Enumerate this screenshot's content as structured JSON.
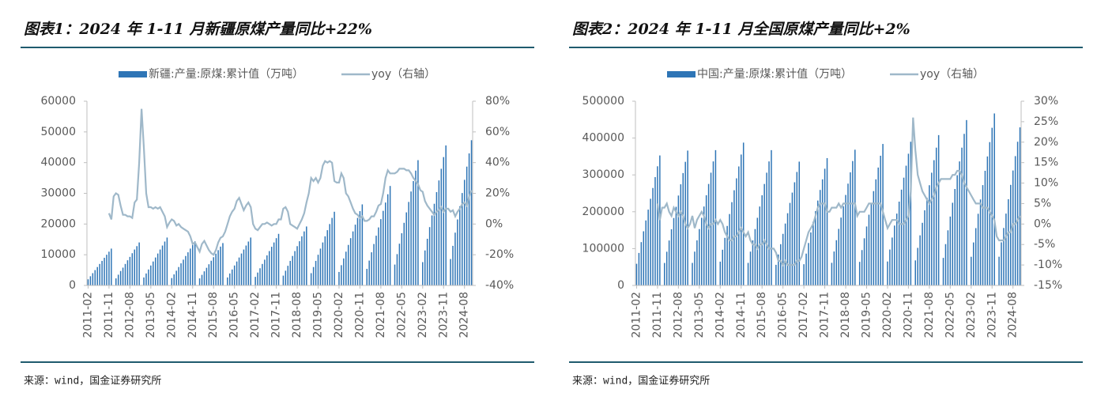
{
  "chart_data": [
    {
      "type": "bar",
      "title": "图表1：2024 年 1-11 月新疆原煤产量同比+22%",
      "legend": [
        "新疆:产量:原煤:累计值（万吨）",
        "yoy（右轴）"
      ],
      "source": "来源：wind，国金证券研究所",
      "categories": [
        "2011-02",
        null,
        null,
        null,
        null,
        null,
        null,
        null,
        null,
        "2011-11",
        null,
        null,
        null,
        null,
        null,
        null,
        null,
        null,
        "2012-08",
        null,
        null,
        null,
        null,
        null,
        null,
        null,
        null,
        "2013-05",
        null,
        null,
        null,
        null,
        null,
        null,
        null,
        null,
        "2014-02",
        null,
        null,
        null,
        null,
        null,
        null,
        null,
        null,
        "2014-11",
        null,
        null,
        null,
        null,
        null,
        null,
        null,
        null,
        "2015-08",
        null,
        null,
        null,
        null,
        null,
        null,
        null,
        null,
        "2016-05",
        null,
        null,
        null,
        null,
        null,
        null,
        null,
        null,
        "2017-02",
        null,
        null,
        null,
        null,
        null,
        null,
        null,
        null,
        "2017-11",
        null,
        null,
        null,
        null,
        null,
        null,
        null,
        null,
        "2018-08",
        null,
        null,
        null,
        null,
        null,
        null,
        null,
        null,
        "2019-05",
        null,
        null,
        null,
        null,
        null,
        null,
        null,
        null,
        "2020-02",
        null,
        null,
        null,
        null,
        null,
        null,
        null,
        null,
        "2020-11",
        null,
        null,
        null,
        null,
        null,
        null,
        null,
        null,
        "2021-08",
        null,
        null,
        null,
        null,
        null,
        null,
        null,
        null,
        "2022-05",
        null,
        null,
        null,
        null,
        null,
        null,
        null,
        null,
        "2023-02",
        null,
        null,
        null,
        null,
        null,
        null,
        null,
        null,
        "2023-11",
        null,
        null,
        null,
        null,
        null,
        null,
        null,
        null,
        "2024-08",
        null,
        null,
        null
      ],
      "series": [
        {
          "name": "新疆:产量:原煤:累计值（万吨）",
          "color": "#2e75b6",
          "values": [
            2000,
            3000,
            4000,
            5000,
            6000,
            7000,
            8000,
            9000,
            10000,
            11000,
            12000,
            null,
            2300,
            3500,
            4700,
            5800,
            7000,
            8200,
            9300,
            10500,
            11700,
            12800,
            14000,
            null,
            2600,
            3900,
            5200,
            6500,
            7800,
            9100,
            10400,
            11700,
            13000,
            14300,
            15600,
            null,
            2400,
            3600,
            4800,
            6000,
            7200,
            8400,
            9600,
            10800,
            12000,
            13200,
            14400,
            null,
            2300,
            3450,
            4600,
            5750,
            6900,
            8050,
            9200,
            10350,
            11500,
            12650,
            13800,
            null,
            2600,
            3900,
            5200,
            6500,
            7800,
            9100,
            10400,
            11700,
            13000,
            14300,
            15600,
            null,
            2800,
            4200,
            5600,
            7000,
            8400,
            9800,
            11200,
            12600,
            14000,
            15400,
            16800,
            null,
            3200,
            4800,
            6400,
            8000,
            9600,
            11200,
            12800,
            14400,
            16000,
            17600,
            19200,
            null,
            4000,
            6000,
            8000,
            10000,
            12000,
            14000,
            16000,
            18000,
            20000,
            22000,
            24000,
            null,
            4400,
            6600,
            8800,
            11000,
            13200,
            15400,
            17600,
            19800,
            22000,
            24200,
            26400,
            null,
            5400,
            8100,
            10800,
            13500,
            16200,
            18900,
            21600,
            24300,
            27000,
            29700,
            32400,
            null,
            6800,
            10200,
            13600,
            17000,
            20400,
            23800,
            27200,
            30600,
            34000,
            37400,
            40800,
            null,
            7600,
            11400,
            15200,
            19000,
            22800,
            26600,
            30400,
            34200,
            38000,
            41800,
            45600,
            null,
            8600,
            12900,
            17200,
            21500,
            25800,
            30100,
            34400,
            38700,
            43000,
            47300
          ]
        },
        {
          "name": "yoy（右轴）",
          "color": "#9fb8c9",
          "axis": "y2",
          "values": [
            null,
            null,
            null,
            null,
            null,
            null,
            null,
            null,
            null,
            7,
            3,
            18,
            20,
            19,
            12,
            6,
            6,
            5,
            5,
            4,
            14,
            16,
            40,
            75,
            50,
            20,
            11,
            11,
            10,
            11,
            10,
            11,
            8,
            5,
            -2,
            1,
            3,
            2,
            -1,
            0,
            -2,
            -3,
            -4,
            -5,
            -8,
            -13,
            -12,
            -15,
            -18,
            -13,
            -11,
            -14,
            -17,
            -19,
            -20,
            -17,
            -12,
            -9,
            -8,
            -5,
            0,
            5,
            8,
            10,
            15,
            17,
            13,
            9,
            12,
            14,
            11,
            0,
            -3,
            -4,
            -2,
            0,
            0,
            1,
            0,
            -1,
            0,
            0,
            3,
            3,
            10,
            11,
            8,
            0,
            -1,
            -2,
            -3,
            0,
            3,
            7,
            14,
            20,
            30,
            28,
            30,
            27,
            30,
            38,
            41,
            40,
            41,
            40,
            28,
            27,
            27,
            33,
            30,
            20,
            18,
            14,
            10,
            7,
            6,
            4,
            5,
            2,
            2,
            3,
            5,
            5,
            8,
            12,
            13,
            20,
            30,
            35,
            33,
            33,
            33,
            34,
            36,
            36,
            36,
            35,
            35,
            33,
            30,
            28,
            26,
            22,
            21,
            15,
            12,
            10,
            8,
            6,
            8,
            9,
            11,
            8,
            10,
            10,
            8,
            9,
            5,
            8,
            10,
            13,
            14,
            12,
            18,
            22
          ]
        }
      ],
      "ylim": [
        0,
        60000
      ],
      "yticks": [
        0,
        10000,
        20000,
        30000,
        40000,
        50000,
        60000
      ],
      "y2lim": [
        -40,
        80
      ],
      "y2ticks": [
        {
          "value": -40,
          "label": "-40%"
        },
        {
          "value": -20,
          "label": "-20%"
        },
        {
          "value": 0,
          "label": "0%"
        },
        {
          "value": 20,
          "label": "20%"
        },
        {
          "value": 40,
          "label": "40%"
        },
        {
          "value": 60,
          "label": "60%"
        },
        {
          "value": 80,
          "label": "80%"
        }
      ]
    },
    {
      "type": "bar",
      "title": "图表2：2024 年 1-11 月全国原煤产量同比+2%",
      "legend": [
        "中国:产量:原煤:累计值（万吨）",
        "yoy（右轴）"
      ],
      "source": "来源：wind，国金证券研究所",
      "categories": [
        "2011-02",
        null,
        null,
        null,
        null,
        null,
        null,
        null,
        null,
        "2011-11",
        null,
        null,
        null,
        null,
        null,
        null,
        null,
        null,
        "2012-08",
        null,
        null,
        null,
        null,
        null,
        null,
        null,
        null,
        "2013-05",
        null,
        null,
        null,
        null,
        null,
        null,
        null,
        null,
        "2014-02",
        null,
        null,
        null,
        null,
        null,
        null,
        null,
        null,
        "2014-11",
        null,
        null,
        null,
        null,
        null,
        null,
        null,
        null,
        "2015-08",
        null,
        null,
        null,
        null,
        null,
        null,
        null,
        null,
        "2016-05",
        null,
        null,
        null,
        null,
        null,
        null,
        null,
        null,
        "2017-02",
        null,
        null,
        null,
        null,
        null,
        null,
        null,
        null,
        "2017-11",
        null,
        null,
        null,
        null,
        null,
        null,
        null,
        null,
        "2018-08",
        null,
        null,
        null,
        null,
        null,
        null,
        null,
        null,
        "2019-05",
        null,
        null,
        null,
        null,
        null,
        null,
        null,
        null,
        "2020-02",
        null,
        null,
        null,
        null,
        null,
        null,
        null,
        null,
        "2020-11",
        null,
        null,
        null,
        null,
        null,
        null,
        null,
        null,
        "2021-08",
        null,
        null,
        null,
        null,
        null,
        null,
        null,
        null,
        "2022-05",
        null,
        null,
        null,
        null,
        null,
        null,
        null,
        null,
        "2023-02",
        null,
        null,
        null,
        null,
        null,
        null,
        null,
        null,
        "2023-11",
        null,
        null,
        null,
        null,
        null,
        null,
        null,
        null,
        "2024-08",
        null,
        null,
        null
      ],
      "series": [
        {
          "name": "中国:产量:原煤:累计值（万吨）",
          "color": "#2e75b6",
          "values": [
            58800,
            88200,
            117600,
            147000,
            176400,
            205800,
            235200,
            264600,
            294000,
            323400,
            352800,
            null,
            61000,
            91500,
            122000,
            152500,
            183000,
            213500,
            244000,
            274500,
            305000,
            335500,
            366000,
            null,
            61200,
            91800,
            122400,
            153000,
            183600,
            214200,
            244800,
            275400,
            306000,
            336600,
            367200,
            null,
            64600,
            96900,
            129200,
            161500,
            193800,
            226100,
            258400,
            290700,
            323000,
            355300,
            387600,
            null,
            61200,
            91800,
            122400,
            153000,
            183600,
            214200,
            244800,
            275400,
            306000,
            336600,
            367200,
            null,
            56000,
            84000,
            112000,
            140000,
            168000,
            196000,
            224000,
            252000,
            280000,
            308000,
            336000,
            null,
            57600,
            86400,
            115200,
            144000,
            172800,
            201600,
            230400,
            259200,
            288000,
            316800,
            345600,
            null,
            61400,
            92100,
            122800,
            153500,
            184200,
            214900,
            245600,
            276300,
            307000,
            337700,
            368400,
            null,
            64000,
            96000,
            128000,
            160000,
            192000,
            224000,
            256000,
            288000,
            320000,
            352000,
            384000,
            null,
            65000,
            97500,
            130000,
            162500,
            195000,
            227500,
            260000,
            292500,
            325000,
            357500,
            390000,
            null,
            68000,
            102000,
            136000,
            170000,
            204000,
            238000,
            272000,
            306000,
            340000,
            374000,
            408000,
            null,
            74800,
            112200,
            149600,
            187000,
            224400,
            261800,
            299200,
            336600,
            374000,
            411400,
            448800,
            null,
            77800,
            116700,
            155600,
            194500,
            233400,
            272300,
            311200,
            350100,
            389000,
            427900,
            466800,
            null,
            78000,
            117000,
            156000,
            195000,
            234000,
            273000,
            312000,
            351000,
            390000,
            429000
          ]
        },
        {
          "name": "yoy（右轴）",
          "color": "#9fb8c9",
          "axis": "y2",
          "values": [
            null,
            null,
            null,
            null,
            null,
            null,
            null,
            null,
            null,
            5,
            1,
            4,
            4,
            5,
            3,
            2,
            4,
            3,
            2,
            3,
            2,
            0,
            -1,
            0,
            2,
            -1,
            1,
            2,
            3,
            2,
            0,
            -1,
            0,
            0,
            1,
            0,
            1,
            0,
            -2,
            -3,
            -4,
            -4,
            -3,
            -3,
            -2,
            -1,
            -2,
            -3,
            -2,
            -4,
            -5,
            -5,
            -6,
            -5,
            -5,
            -4,
            -5,
            -6,
            -6,
            -6,
            -7,
            -9,
            -9,
            -10,
            -9,
            -10,
            -10,
            -10,
            -10,
            -9,
            -9,
            -8,
            -6,
            -4,
            -2,
            -1,
            0,
            2,
            4,
            5,
            5,
            5,
            3,
            3,
            4,
            4,
            4,
            5,
            4,
            5,
            5,
            5,
            5,
            5,
            5,
            2,
            3,
            3,
            3,
            4,
            5,
            5,
            5,
            5,
            5,
            5,
            3,
            1,
            -1,
            0,
            1,
            1,
            1,
            0,
            0,
            0,
            1,
            2,
            8,
            26,
            18,
            12,
            10,
            8,
            7,
            6,
            5,
            6,
            7,
            9,
            10,
            11,
            11,
            11,
            11,
            11,
            12,
            12,
            13,
            13,
            12,
            10,
            9,
            8,
            7,
            6,
            5,
            5,
            5,
            4,
            4,
            4,
            3,
            2,
            1,
            -3,
            -4,
            -4,
            -4,
            -3,
            -2,
            -2,
            0,
            0,
            1,
            2
          ]
        }
      ],
      "ylim": [
        0,
        500000
      ],
      "yticks": [
        0,
        100000,
        200000,
        300000,
        400000,
        500000
      ],
      "y2lim": [
        -15,
        30
      ],
      "y2ticks": [
        {
          "value": -15,
          "label": "-15%"
        },
        {
          "value": -10,
          "label": "-10%"
        },
        {
          "value": -5,
          "label": "-5%"
        },
        {
          "value": 0,
          "label": "0%"
        },
        {
          "value": 5,
          "label": "5%"
        },
        {
          "value": 10,
          "label": "10%"
        },
        {
          "value": 15,
          "label": "15%"
        },
        {
          "value": 20,
          "label": "20%"
        },
        {
          "value": 25,
          "label": "25%"
        },
        {
          "value": 30,
          "label": "30%"
        }
      ]
    }
  ]
}
